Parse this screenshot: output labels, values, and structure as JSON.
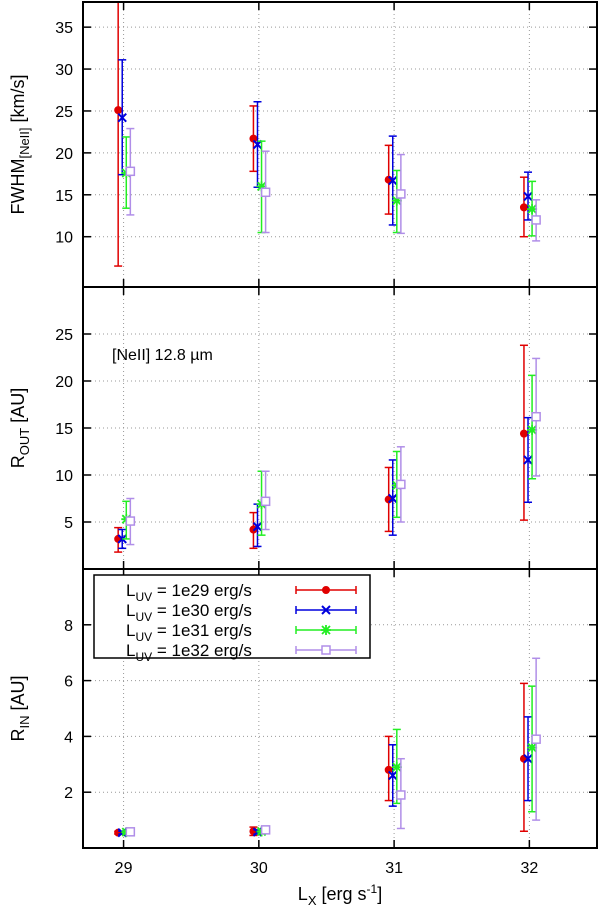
{
  "chart_data": {
    "type": "scatter",
    "errorbars": true,
    "grid": true,
    "grid_style": "dotted",
    "legend_placement": "top-left of bottom panel",
    "x": [
      29,
      30,
      31,
      32
    ],
    "x_tick_labels": [
      "29",
      "30",
      "31",
      "32"
    ],
    "xlabel": {
      "base": "L",
      "sub": "X",
      "unit_pre": " [erg s",
      "unit_sup": "-1",
      "unit_post": "]"
    },
    "xlim": [
      28.7,
      32.5
    ],
    "x_offsets": [
      -0.04,
      -0.01,
      0.02,
      0.05
    ],
    "series": [
      {
        "name": "1e29 erg/s",
        "label_prefix": "L",
        "label_sub": "UV",
        "label_rest": " = 1e29 erg/s",
        "color": "#e00000",
        "marker": "circle"
      },
      {
        "name": "1e30 erg/s",
        "label_prefix": "L",
        "label_sub": "UV",
        "label_rest": " = 1e30 erg/s",
        "color": "#0000dd",
        "marker": "x"
      },
      {
        "name": "1e31 erg/s",
        "label_prefix": "L",
        "label_sub": "UV",
        "label_rest": " = 1e31 erg/s",
        "color": "#22ee22",
        "marker": "star"
      },
      {
        "name": "1e32 erg/s",
        "label_prefix": "L",
        "label_sub": "UV",
        "label_rest": " = 1e32 erg/s",
        "color": "#b08ee8",
        "marker": "square"
      }
    ],
    "panels": [
      {
        "id": "fwhm",
        "ylabel": {
          "base": "FWHM",
          "sub": "[NeII]",
          "unit": " [km/s]"
        },
        "ylim": [
          4,
          38
        ],
        "yticks": [
          10,
          15,
          20,
          25,
          30,
          35
        ],
        "annotation": "",
        "data": [
          {
            "y": [
              25.1,
              21.7,
              16.8,
              13.5
            ],
            "lo": [
              6.5,
              17.8,
              12.7,
              10.0
            ],
            "hi": [
              38.0,
              25.6,
              20.9,
              17.1
            ]
          },
          {
            "y": [
              24.2,
              21.0,
              16.7,
              14.8
            ],
            "lo": [
              17.4,
              15.9,
              11.4,
              12.0
            ],
            "hi": [
              31.1,
              26.1,
              22.0,
              17.7
            ]
          },
          {
            "y": [
              17.6,
              16.0,
              14.3,
              13.3
            ],
            "lo": [
              13.4,
              10.5,
              10.5,
              10.1
            ],
            "hi": [
              21.9,
              21.4,
              17.9,
              16.6
            ]
          },
          {
            "y": [
              17.8,
              15.3,
              15.1,
              12.0
            ],
            "lo": [
              12.6,
              10.5,
              10.4,
              9.5
            ],
            "hi": [
              22.9,
              20.2,
              19.8,
              14.4
            ]
          }
        ]
      },
      {
        "id": "rout",
        "ylabel": {
          "base": "R",
          "sub": "OUT",
          "unit": " [AU]"
        },
        "ylim": [
          0,
          30
        ],
        "yticks": [
          5,
          10,
          15,
          20,
          25
        ],
        "annotation": "[NeII] 12.8 µm",
        "data": [
          {
            "y": [
              3.2,
              4.2,
              7.4,
              14.4
            ],
            "lo": [
              1.8,
              2.2,
              4.0,
              5.2
            ],
            "hi": [
              4.4,
              6.0,
              10.8,
              23.8
            ]
          },
          {
            "y": [
              3.2,
              4.5,
              7.5,
              11.6
            ],
            "lo": [
              2.2,
              2.4,
              3.6,
              7.1
            ],
            "hi": [
              4.2,
              6.9,
              11.6,
              16.1
            ]
          },
          {
            "y": [
              5.3,
              6.9,
              8.9,
              14.8
            ],
            "lo": [
              3.2,
              3.6,
              5.5,
              9.6
            ],
            "hi": [
              7.2,
              10.4,
              12.5,
              20.6
            ]
          },
          {
            "y": [
              5.1,
              7.2,
              9.0,
              16.2
            ],
            "lo": [
              2.6,
              4.2,
              5.0,
              9.9
            ],
            "hi": [
              7.5,
              10.4,
              13.0,
              22.4
            ]
          }
        ]
      },
      {
        "id": "rin",
        "ylabel": {
          "base": "R",
          "sub": "IN",
          "unit": " [AU]"
        },
        "ylim": [
          0,
          10
        ],
        "yticks": [
          2,
          4,
          6,
          8
        ],
        "annotation": "",
        "data": [
          {
            "y": [
              0.55,
              0.6,
              2.8,
              3.2
            ],
            "lo": [
              0.5,
              0.45,
              1.7,
              0.6
            ],
            "hi": [
              0.6,
              0.75,
              4.0,
              5.9
            ]
          },
          {
            "y": [
              0.55,
              0.57,
              2.6,
              3.2
            ],
            "lo": [
              0.5,
              0.5,
              1.5,
              1.7
            ],
            "hi": [
              0.6,
              0.65,
              3.7,
              4.7
            ]
          },
          {
            "y": [
              0.57,
              0.59,
              2.9,
              3.6
            ],
            "lo": [
              0.52,
              0.52,
              1.6,
              1.3
            ],
            "hi": [
              0.62,
              0.66,
              4.25,
              5.8
            ]
          },
          {
            "y": [
              0.58,
              0.65,
              1.9,
              3.9
            ],
            "lo": [
              0.5,
              0.55,
              0.7,
              1.0
            ],
            "hi": [
              0.66,
              0.75,
              3.2,
              6.8
            ]
          }
        ]
      }
    ]
  }
}
